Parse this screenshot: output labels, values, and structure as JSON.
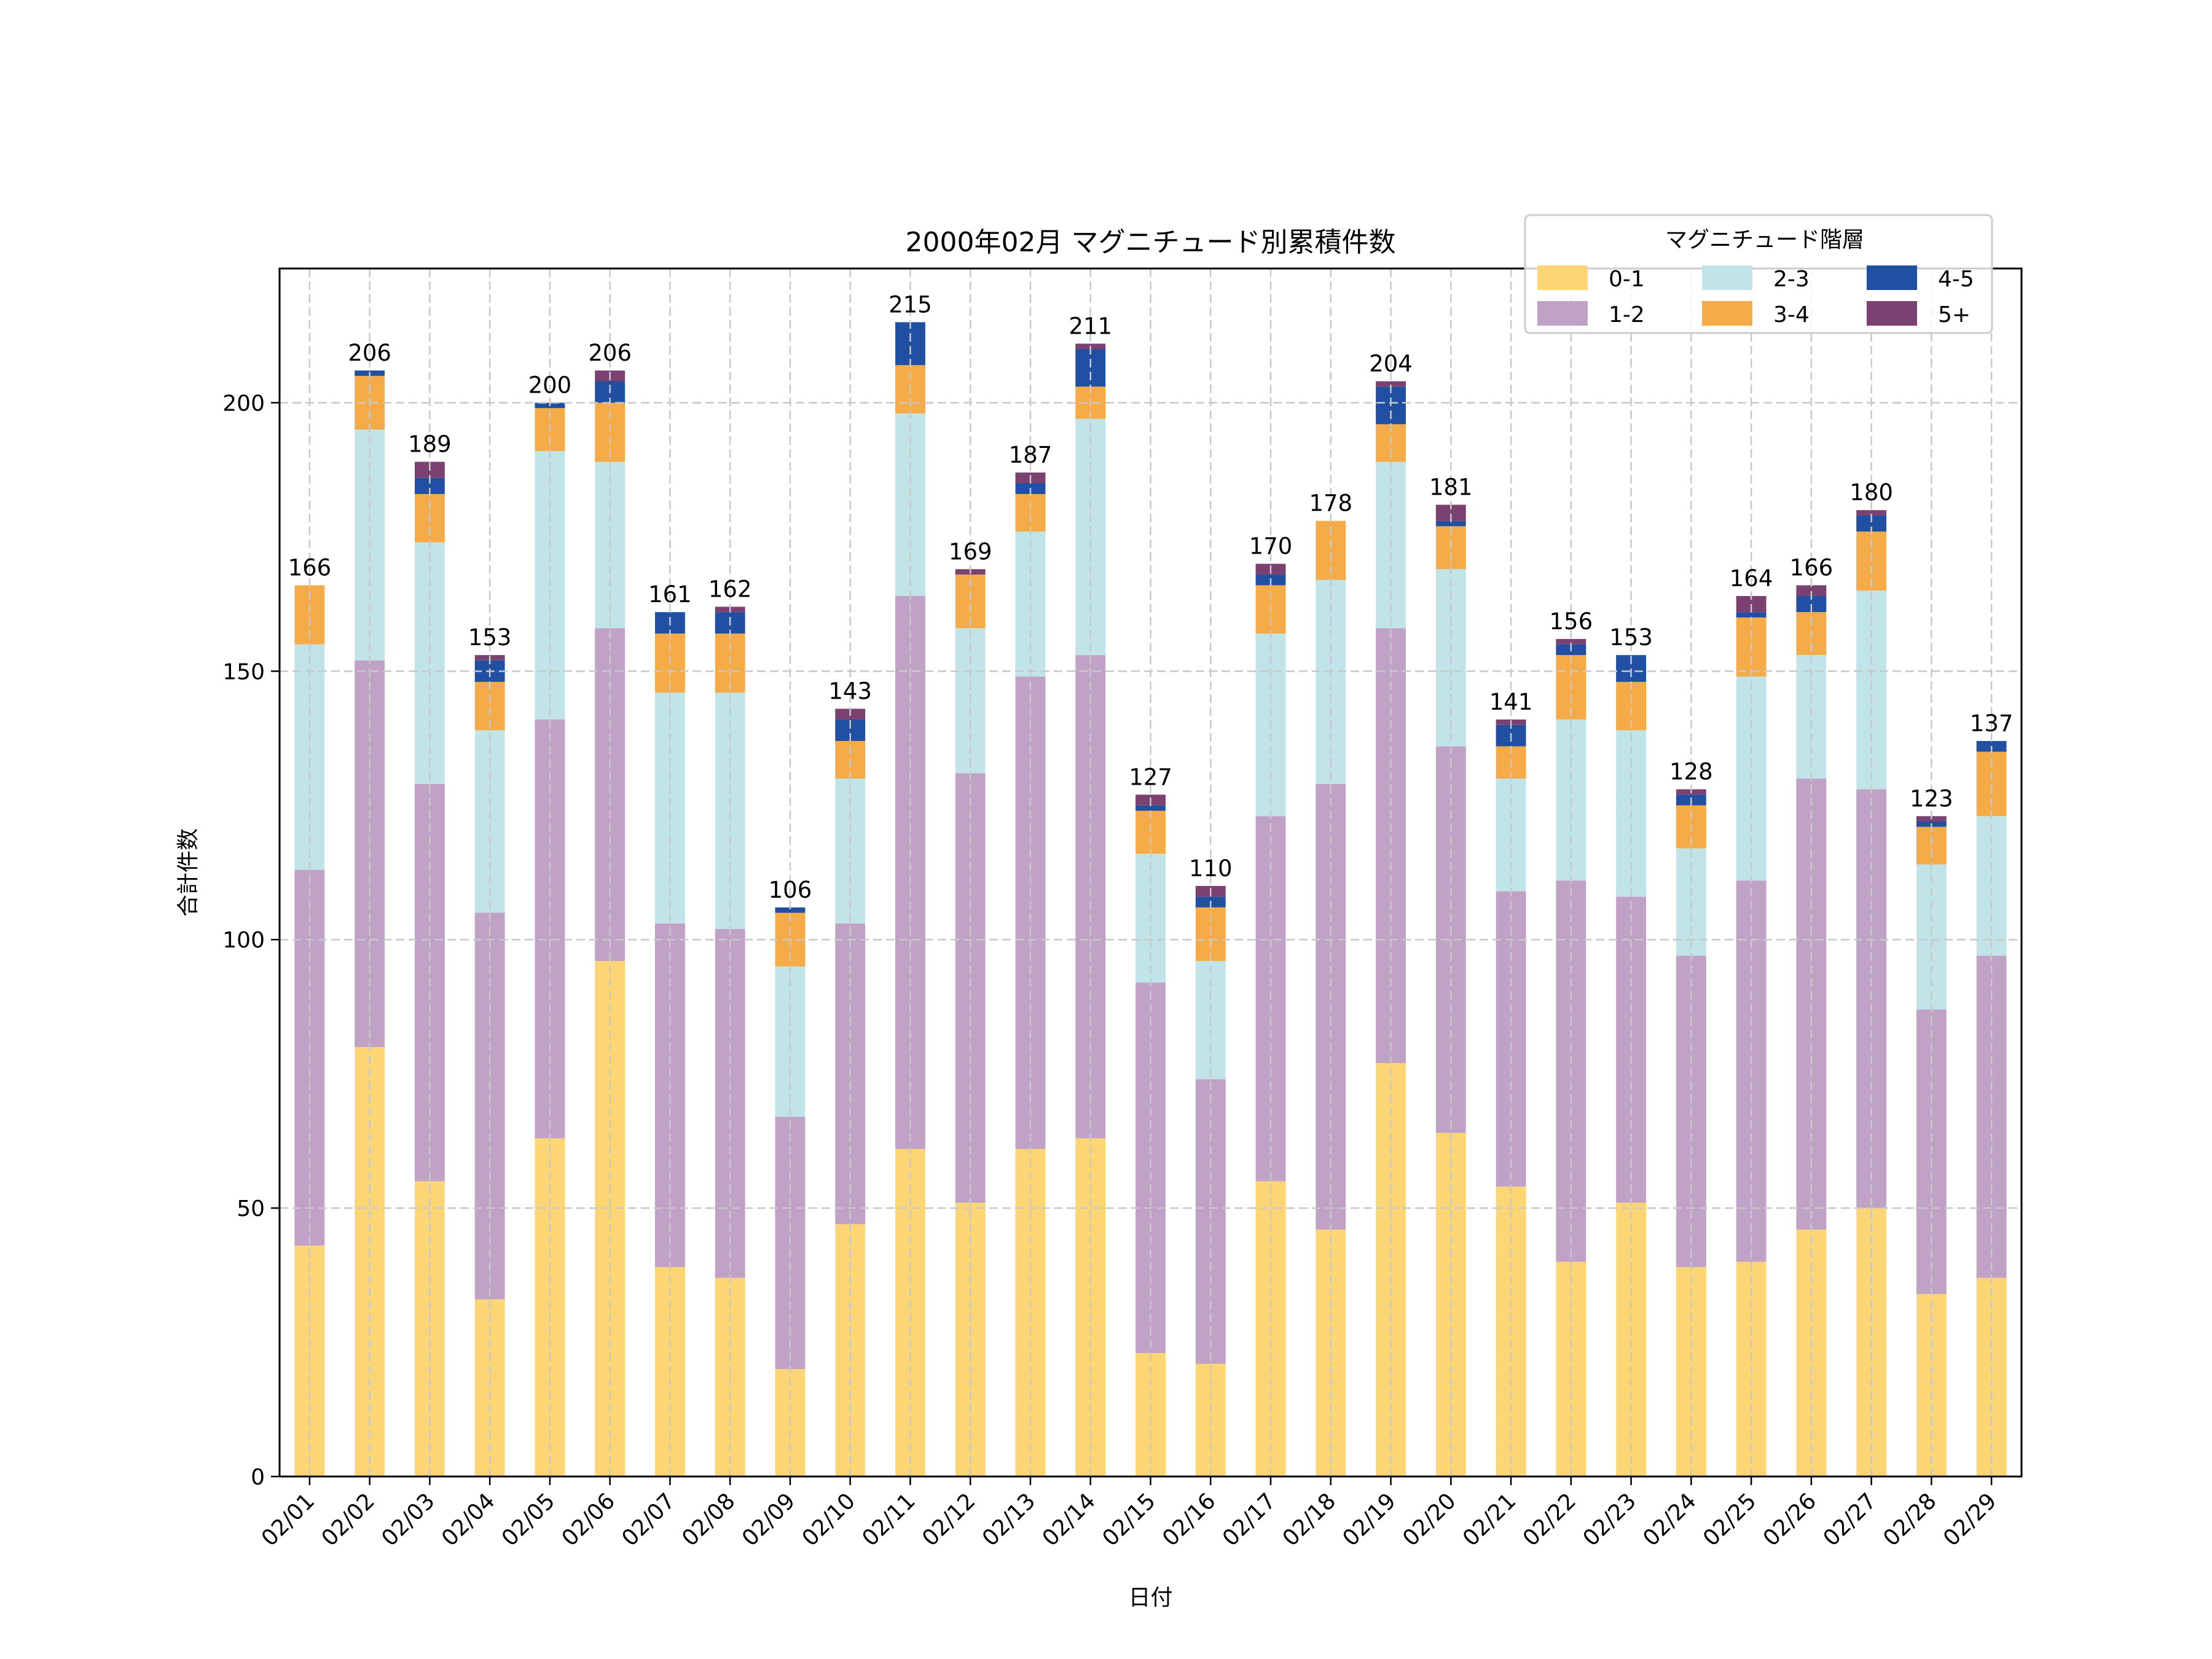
{
  "chart_data": {
    "type": "bar",
    "stacked": true,
    "title": "2000年02月 マグニチュード別累積件数",
    "xlabel": "日付",
    "ylabel": "合計件数",
    "ylim": [
      0,
      225
    ],
    "yticks": [
      0,
      50,
      100,
      150,
      200
    ],
    "grid": true,
    "legend": {
      "title": "マグニチュード階層",
      "placement": "top-right",
      "columns": 3
    },
    "categories": [
      "02/01",
      "02/02",
      "02/03",
      "02/04",
      "02/05",
      "02/06",
      "02/07",
      "02/08",
      "02/09",
      "02/10",
      "02/11",
      "02/12",
      "02/13",
      "02/14",
      "02/15",
      "02/16",
      "02/17",
      "02/18",
      "02/19",
      "02/20",
      "02/21",
      "02/22",
      "02/23",
      "02/24",
      "02/25",
      "02/26",
      "02/27",
      "02/28",
      "02/29"
    ],
    "series": [
      {
        "name": "0-1",
        "color": "#fcd575",
        "values": [
          43,
          80,
          55,
          33,
          63,
          96,
          39,
          37,
          20,
          47,
          61,
          51,
          61,
          63,
          23,
          21,
          55,
          46,
          77,
          64,
          54,
          40,
          51,
          39,
          40,
          46,
          50,
          34,
          37
        ]
      },
      {
        "name": "1-2",
        "color": "#c0a2c7",
        "values": [
          70,
          72,
          74,
          72,
          78,
          62,
          64,
          65,
          47,
          56,
          103,
          80,
          88,
          90,
          69,
          53,
          68,
          83,
          81,
          72,
          55,
          71,
          57,
          58,
          71,
          84,
          78,
          53,
          60
        ]
      },
      {
        "name": "2-3",
        "color": "#c1e4e9",
        "values": [
          42,
          43,
          45,
          34,
          50,
          31,
          43,
          44,
          28,
          27,
          34,
          27,
          27,
          44,
          24,
          22,
          34,
          38,
          31,
          33,
          21,
          30,
          31,
          20,
          38,
          23,
          37,
          27,
          26
        ]
      },
      {
        "name": "3-4",
        "color": "#f5ac48",
        "values": [
          11,
          10,
          9,
          9,
          8,
          11,
          11,
          11,
          10,
          7,
          9,
          10,
          7,
          6,
          8,
          10,
          9,
          11,
          7,
          8,
          6,
          12,
          9,
          8,
          11,
          8,
          11,
          7,
          12
        ]
      },
      {
        "name": "4-5",
        "color": "#2150a3",
        "values": [
          0,
          1,
          3,
          4,
          1,
          4,
          4,
          4,
          1,
          4,
          8,
          0,
          2,
          7,
          1,
          2,
          2,
          0,
          7,
          1,
          4,
          2,
          5,
          2,
          1,
          3,
          3,
          1,
          2
        ]
      },
      {
        "name": "5+",
        "color": "#7b4171",
        "values": [
          0,
          0,
          3,
          1,
          0,
          2,
          0,
          1,
          0,
          2,
          0,
          1,
          2,
          1,
          2,
          2,
          2,
          0,
          1,
          3,
          1,
          1,
          0,
          1,
          3,
          2,
          1,
          1,
          0
        ]
      }
    ],
    "totals": [
      166,
      206,
      189,
      153,
      200,
      206,
      161,
      162,
      106,
      143,
      215,
      169,
      187,
      211,
      127,
      110,
      170,
      178,
      204,
      181,
      141,
      156,
      153,
      128,
      164,
      166,
      180,
      123,
      137
    ]
  }
}
